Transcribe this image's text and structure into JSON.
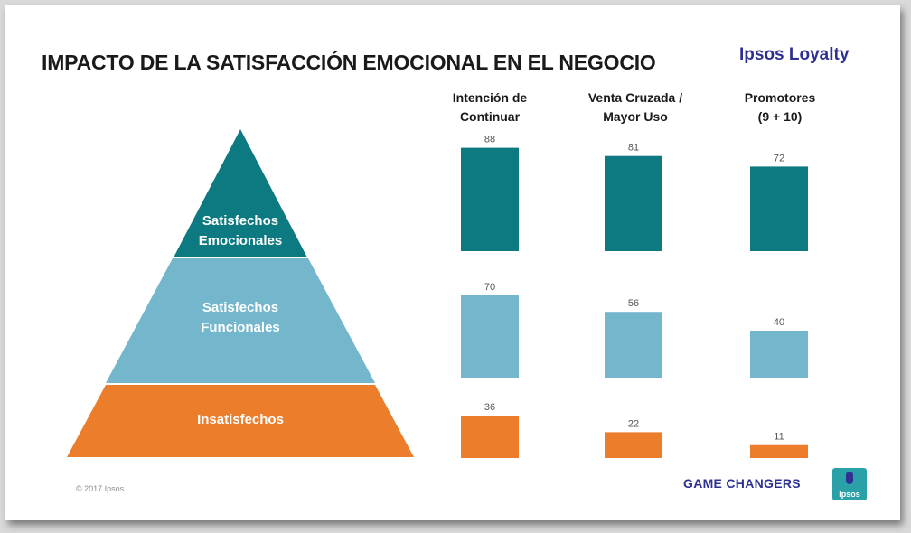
{
  "title": "IMPACTO DE LA SATISFACCIÓN EMOCIONAL EN EL NEGOCIO",
  "brand": "Ipsos Loyalty",
  "copyright": "© 2017 Ipsos.",
  "footer_tagline": "GAME CHANGERS",
  "logo_text": "Ipsos",
  "colors": {
    "teal": "#0c7a80",
    "light_blue": "#74b6cc",
    "orange": "#ec7d2b"
  },
  "pyramid": {
    "levels": [
      {
        "line1": "Satisfechos",
        "line2": "Emocionales"
      },
      {
        "line1": "Satisfechos",
        "line2": "Funcionales"
      },
      {
        "line1": "Insatisfechos",
        "line2": ""
      }
    ]
  },
  "chart_data": {
    "type": "bar",
    "categories": [
      "Intención de Continuar",
      "Venta Cruzada / Mayor Uso",
      "Promotores (9 + 10)"
    ],
    "category_lines": [
      [
        "Intención de",
        "Continuar"
      ],
      [
        "Venta Cruzada /",
        "Mayor Uso"
      ],
      [
        "Promotores",
        "(9 + 10)"
      ]
    ],
    "series": [
      {
        "name": "Satisfechos Emocionales",
        "values": [
          88,
          81,
          72
        ]
      },
      {
        "name": "Satisfechos Funcionales",
        "values": [
          70,
          56,
          40
        ]
      },
      {
        "name": "Insatisfechos",
        "values": [
          36,
          22,
          11
        ]
      }
    ],
    "title": "IMPACTO DE LA SATISFACCIÓN EMOCIONAL EN EL NEGOCIO",
    "xlabel": "",
    "ylabel": "",
    "ylim": [
      0,
      100
    ],
    "grid": false,
    "legend": "none"
  }
}
